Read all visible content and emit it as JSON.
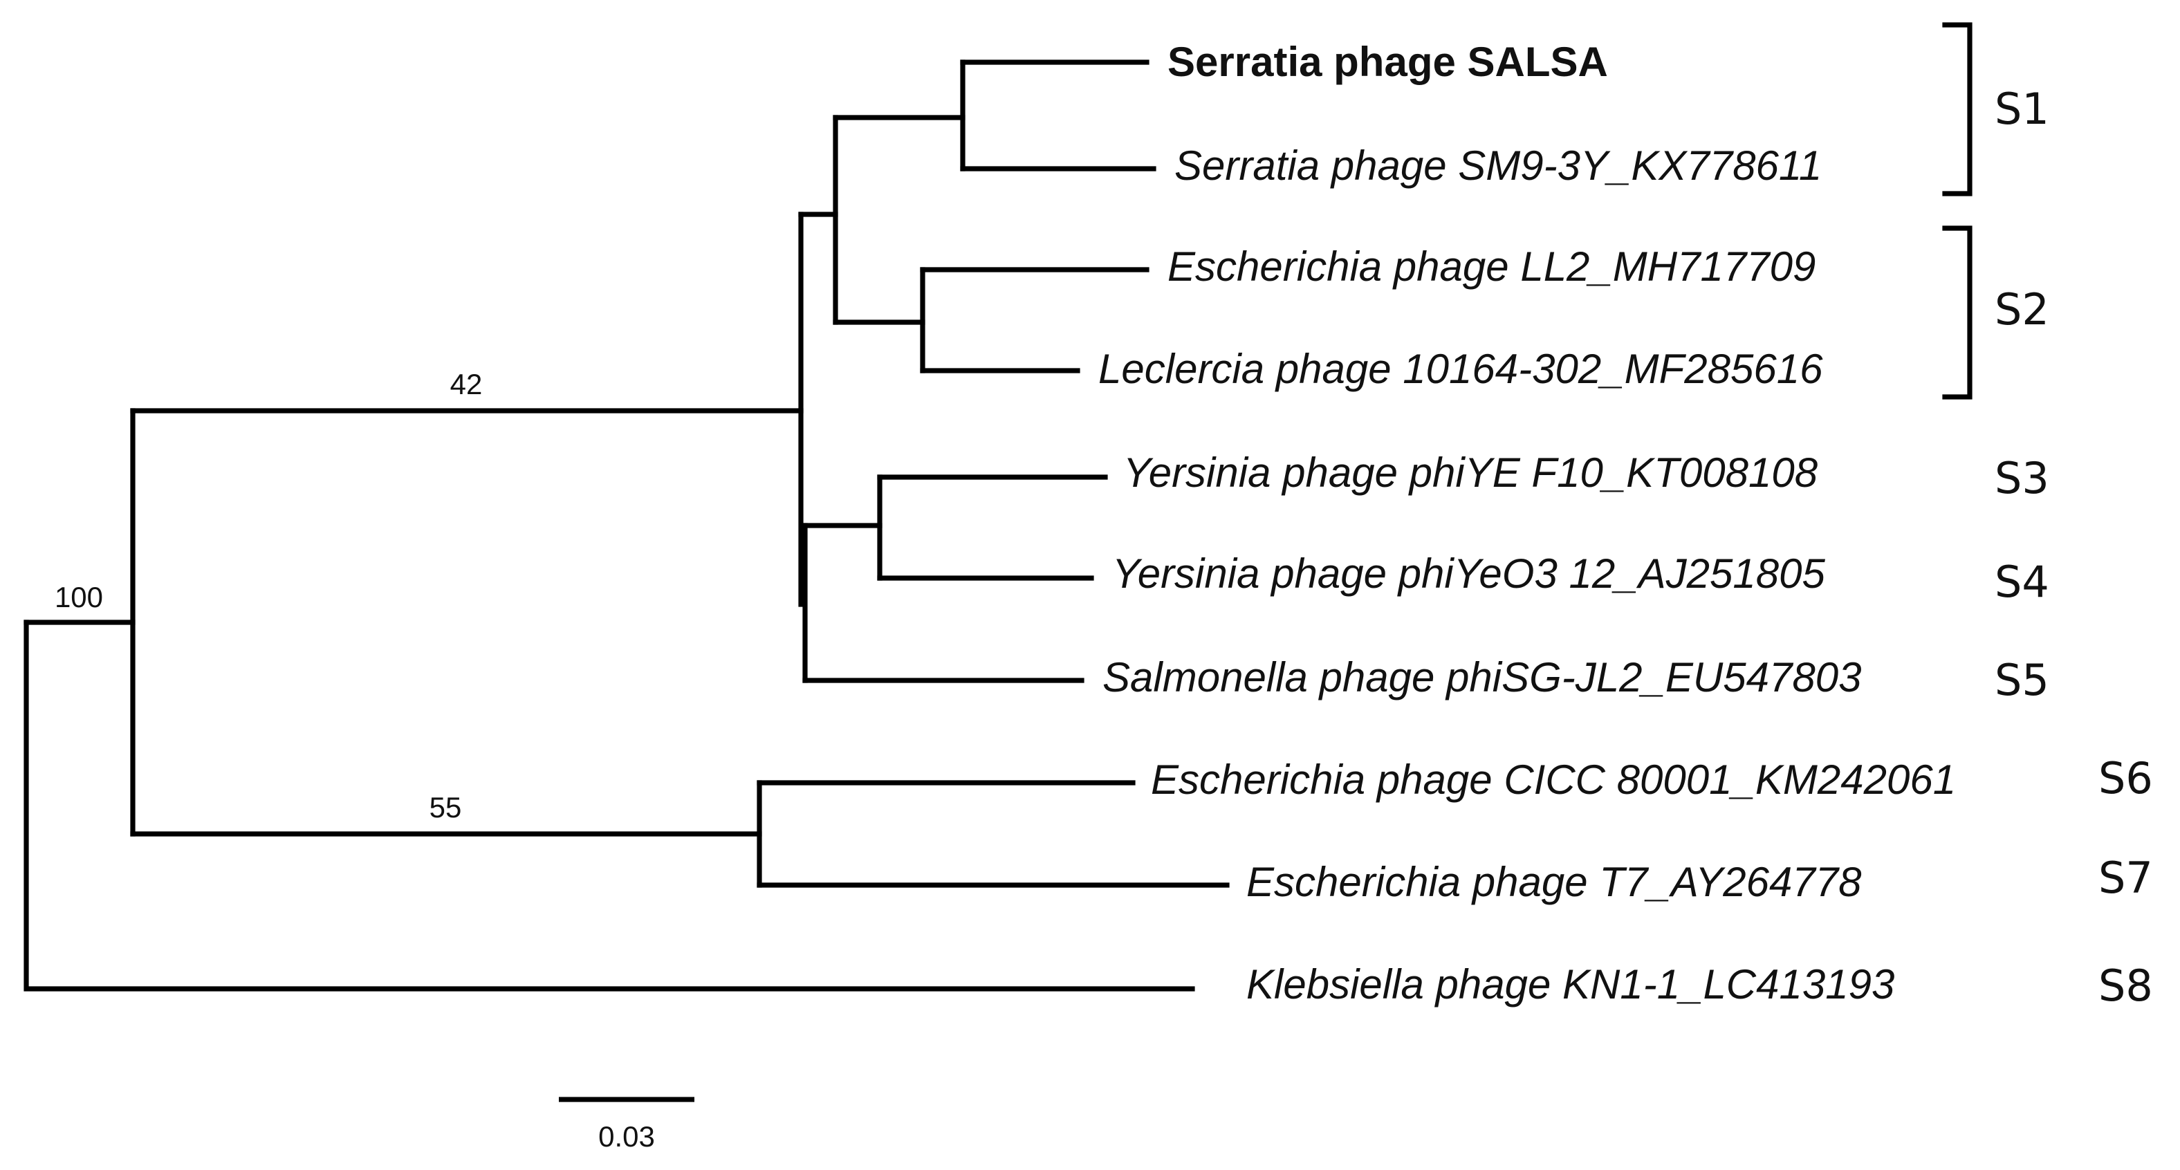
{
  "leaves": [
    {
      "label": "Serratia phage SALSA"
    },
    {
      "label": "Serratia phage SM9-3Y_KX778611"
    },
    {
      "label": "Escherichia phage LL2_MH717709"
    },
    {
      "label": "Leclercia phage 10164-302_MF285616"
    },
    {
      "label": "Yersinia phage phiYE F10_KT008108"
    },
    {
      "label": "Yersinia phage phiYeO3 12_AJ251805"
    },
    {
      "label": "Salmonella phage phiSG-JL2_EU547803"
    },
    {
      "label": "Escherichia phage CICC 80001_KM242061"
    },
    {
      "label": "Escherichia phage T7_AY264778"
    },
    {
      "label": "Klebsiella phage KN1-1_LC413193"
    }
  ],
  "bootstrap": [
    "100",
    "42",
    "55"
  ],
  "groups": [
    "S1",
    "S2",
    "S3",
    "S4",
    "S5",
    "S6",
    "S7",
    "S8"
  ],
  "scale_bar": "0.03"
}
